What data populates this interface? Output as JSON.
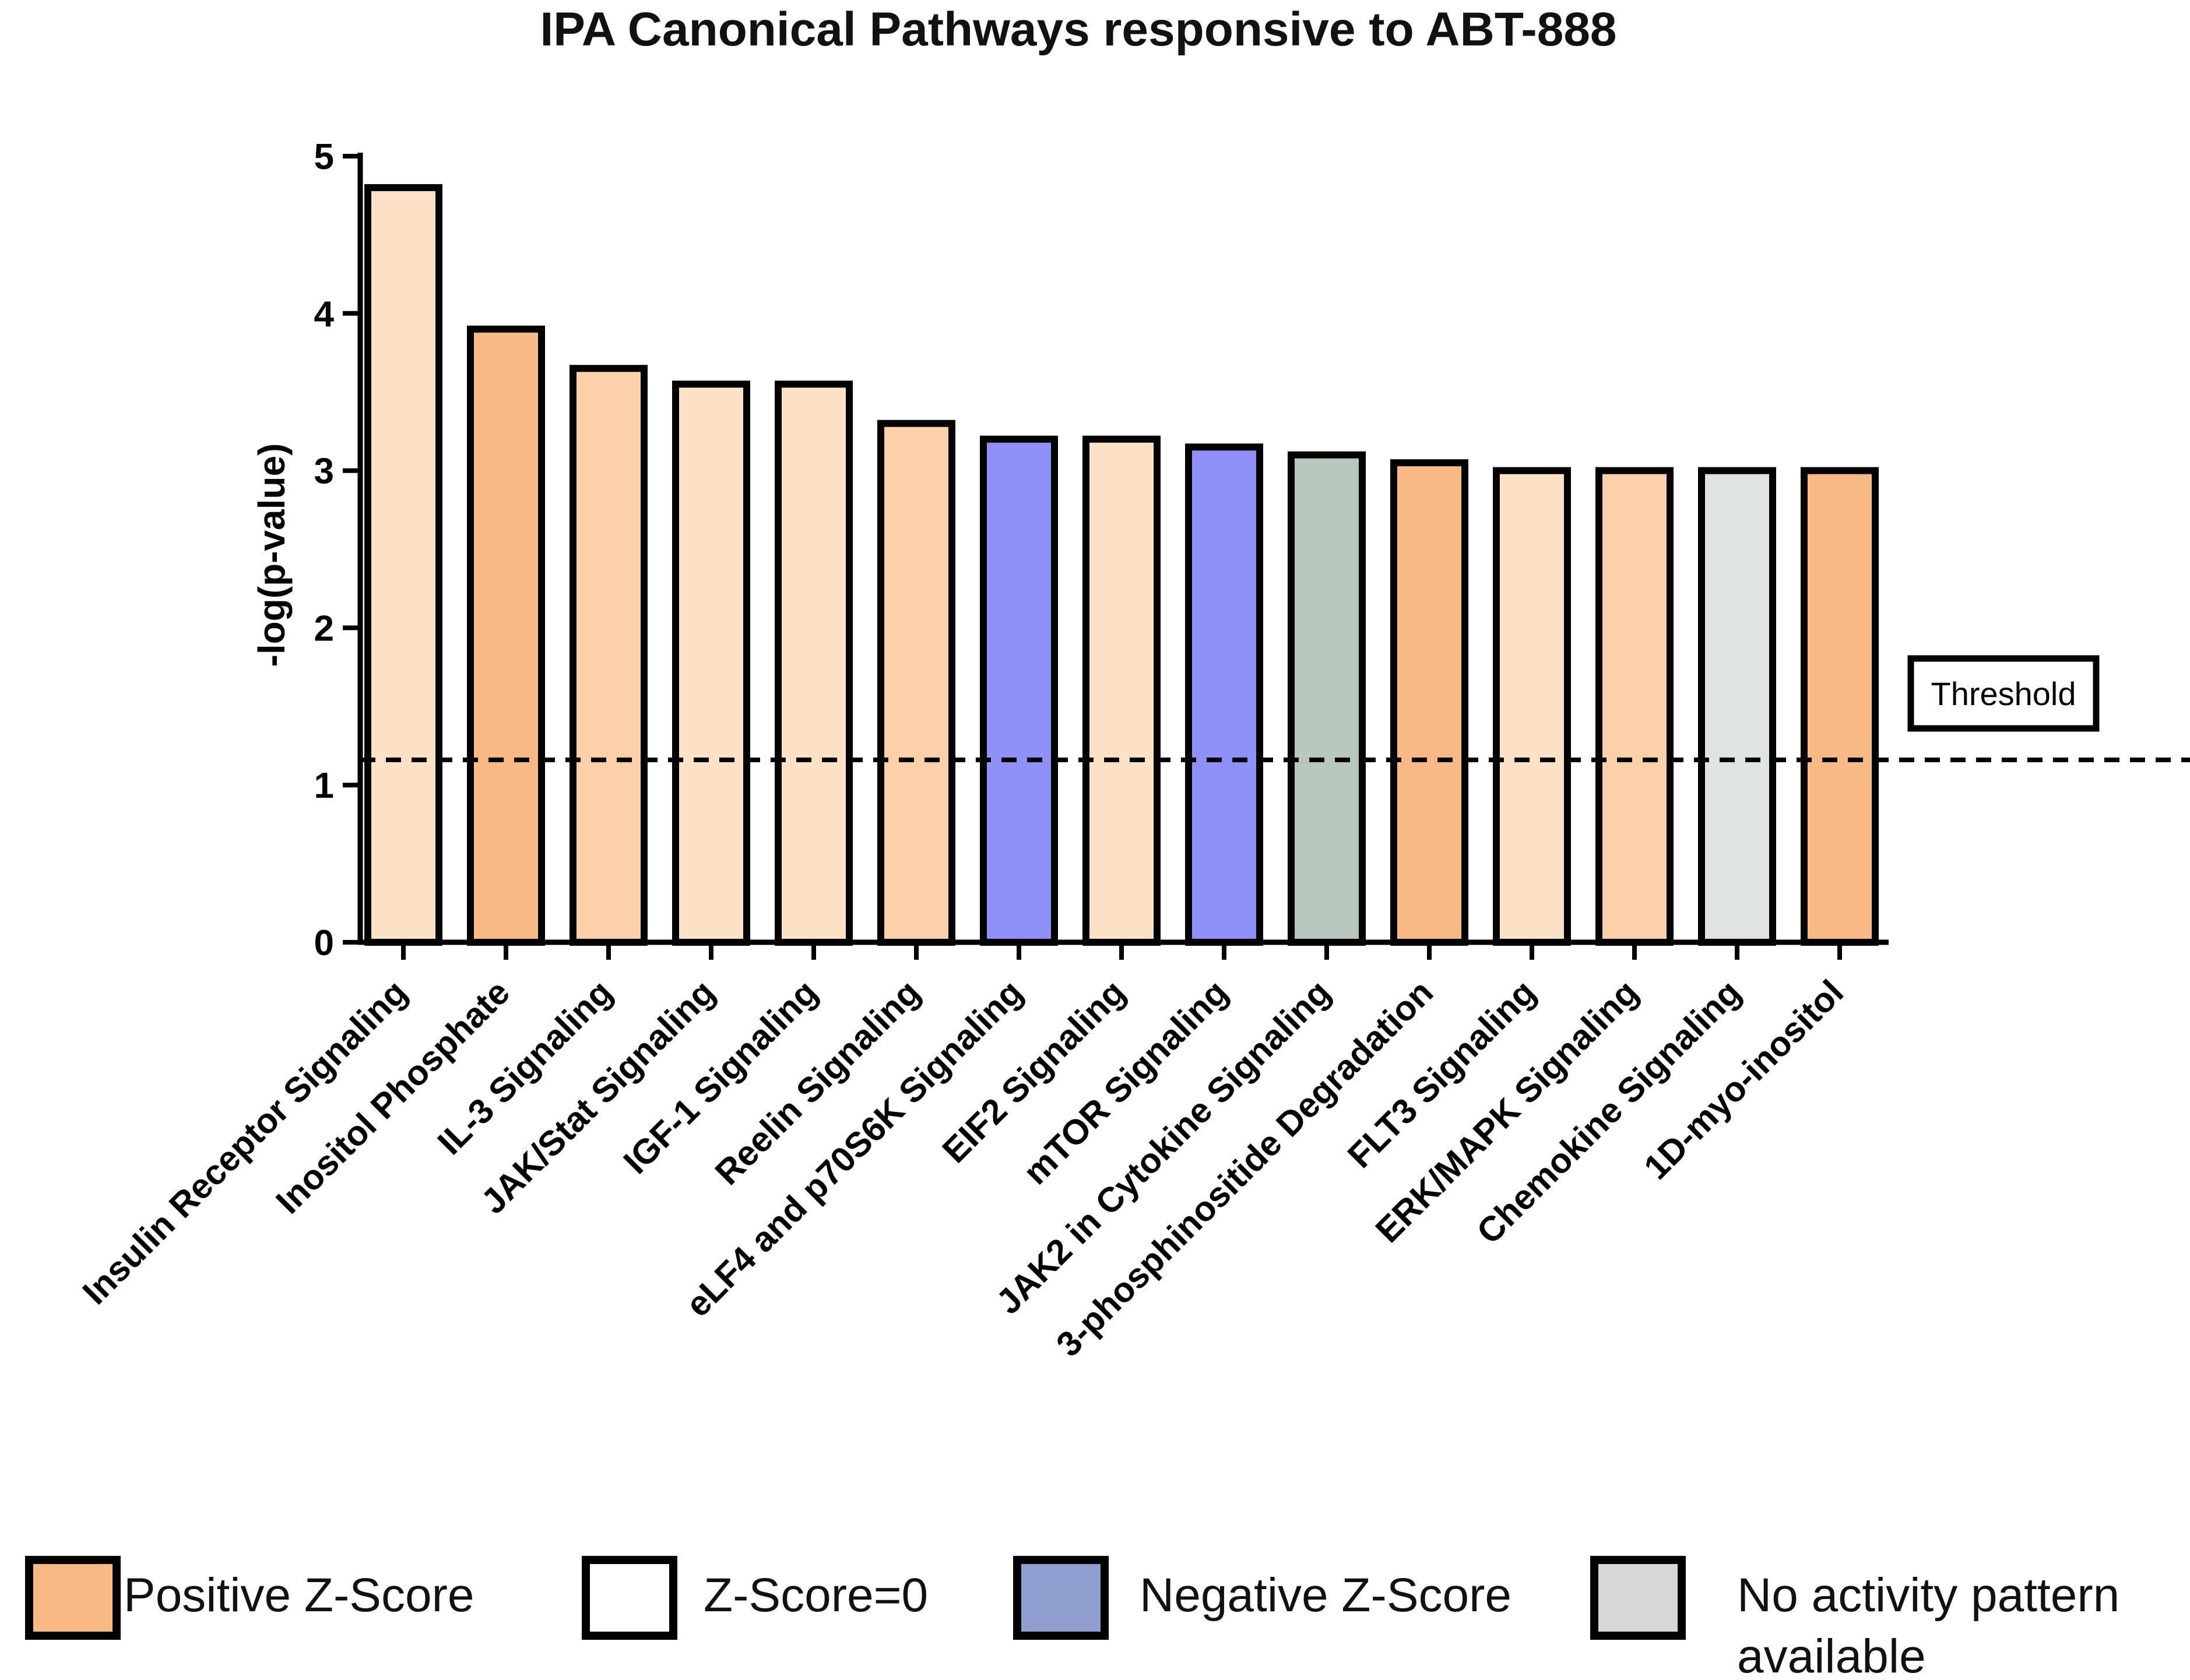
{
  "colors": {
    "positive": "#f9b985",
    "zero": "#ffffff",
    "negative": "#8f9dd1",
    "no_activity": "#d8d8d8",
    "axis": "#000000"
  },
  "chart_data": {
    "type": "bar",
    "title": "IPA Canonical Pathways responsive to ABT-888",
    "xlabel": "",
    "ylabel": "-log(p-value)",
    "ylim": [
      0,
      5
    ],
    "yticks": [
      "0",
      "1",
      "2",
      "3",
      "4",
      "5"
    ],
    "threshold": {
      "value": 1.16,
      "label": "Threshold"
    },
    "bars": [
      {
        "label": "Insulin Receptor Signaling",
        "value": 4.8,
        "color": "#fde2c8"
      },
      {
        "label": "Inositol Phosphate",
        "value": 3.9,
        "color": "#f9b985"
      },
      {
        "label": "IL-3 Signaling",
        "value": 3.65,
        "color": "#fcd0a8"
      },
      {
        "label": "JAK/Stat Signaling",
        "value": 3.55,
        "color": "#fde2c8"
      },
      {
        "label": "IGF-1 Signaling",
        "value": 3.55,
        "color": "#fde2c8"
      },
      {
        "label": "Reelin Signaling",
        "value": 3.3,
        "color": "#fcd0a8"
      },
      {
        "label": "eLF4 and p70S6K Signaling",
        "value": 3.2,
        "color": "#8f8ff8"
      },
      {
        "label": "EIF2 Signaling",
        "value": 3.2,
        "color": "#fde2c8"
      },
      {
        "label": "mTOR Signaling",
        "value": 3.15,
        "color": "#8f8ff8"
      },
      {
        "label": "JAK2 in Cytokine Signaling",
        "value": 3.1,
        "color": "#b9c6bb"
      },
      {
        "label": "3-phosphinositide Degradation",
        "value": 3.05,
        "color": "#f9b985"
      },
      {
        "label": "FLT3 Signaling",
        "value": 3.0,
        "color": "#fde2c8"
      },
      {
        "label": "ERK/MAPK Signaling",
        "value": 3.0,
        "color": "#fcd0a8"
      },
      {
        "label": "Chemokine Signaling",
        "value": 3.0,
        "color": "#dde3df"
      },
      {
        "label": "1D-myo-inositol",
        "value": 3.0,
        "color": "#f9b985"
      }
    ],
    "legend": [
      {
        "label": "Positive Z-Score",
        "color": "#f9b985"
      },
      {
        "label": "Z-Score=0",
        "color": "#ffffff"
      },
      {
        "label": "Negative Z-Score",
        "color": "#8f9dd1"
      },
      {
        "label": "No activity pattern available",
        "color": "#d8d8d8"
      }
    ]
  }
}
